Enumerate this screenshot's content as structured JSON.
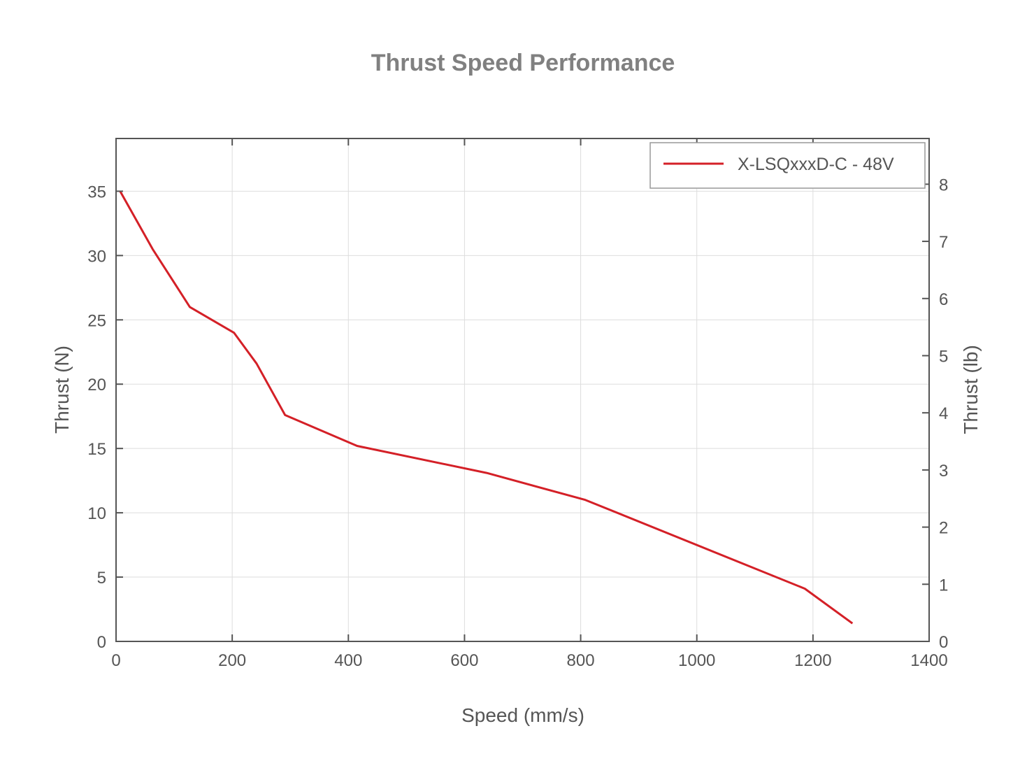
{
  "chart_data": {
    "type": "line",
    "title": "Thrust Speed Performance",
    "xlabel": "Speed (mm/s)",
    "ylabel": "Thrust (N)",
    "y2label": "Thrust (lb)",
    "xlim": [
      0,
      1400
    ],
    "ylim": [
      0,
      39.1
    ],
    "y2lim": [
      0,
      8.8
    ],
    "xticks": [
      0,
      200,
      400,
      600,
      800,
      1000,
      1200,
      1400
    ],
    "yticks": [
      0,
      5,
      10,
      15,
      20,
      25,
      30,
      35
    ],
    "y2ticks": [
      0,
      1,
      2,
      3,
      4,
      5,
      6,
      7,
      8
    ],
    "grid": true,
    "legend_position": "top-right",
    "series": [
      {
        "name": "X-LSQxxxD-C - 48V",
        "color": "#d42027",
        "x": [
          7,
          63,
          127,
          203,
          242,
          291,
          415,
          638,
          808,
          1186,
          1268
        ],
        "y": [
          35.0,
          30.5,
          26.0,
          24.0,
          21.6,
          17.6,
          15.2,
          13.1,
          11.0,
          4.1,
          1.4
        ]
      }
    ]
  }
}
